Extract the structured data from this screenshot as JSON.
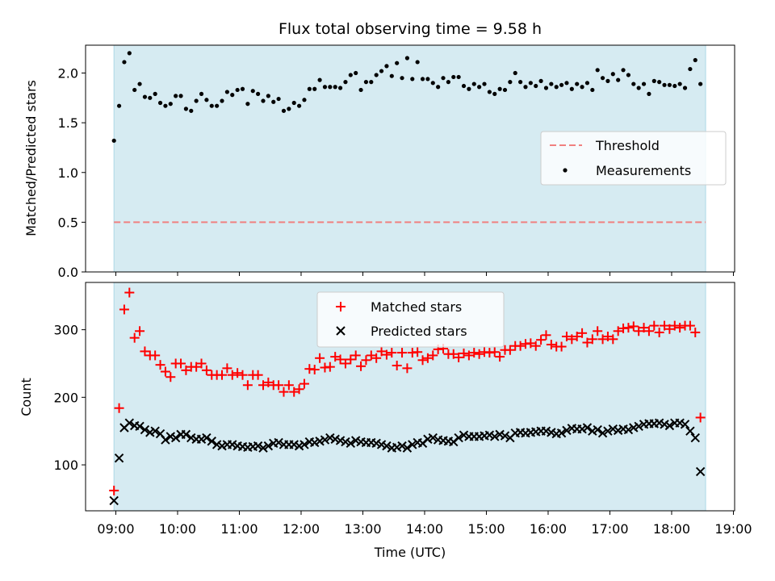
{
  "title": "Flux total observing time = 9.58 h",
  "colors": {
    "band": "#add8e6",
    "threshold": "#f08080",
    "matched": "#ff0000",
    "predicted": "#000000",
    "measurements": "#000000"
  },
  "chart_data": [
    {
      "type": "scatter",
      "panel": "top",
      "ylabel": "Matched/Predicted stars",
      "xlabel": "",
      "ylim": [
        0,
        2.28
      ],
      "yticks": [
        0.0,
        0.5,
        1.0,
        1.5,
        2.0
      ],
      "ytick_labels": [
        "0.0",
        "0.5",
        "1.0",
        "1.5",
        "2.0"
      ],
      "xlim_hours": [
        8.51,
        19.02
      ],
      "observing_span_hours": [
        8.97,
        18.55
      ],
      "threshold": 0.5,
      "legend": {
        "position": "center-right",
        "entries": [
          "Threshold",
          "Measurements"
        ]
      },
      "series": [
        {
          "name": "Measurements",
          "marker": "dot",
          "x_start": 8.97,
          "x_step": 0.0833,
          "values": [
            1.32,
            1.67,
            2.11,
            2.2,
            1.83,
            1.89,
            1.76,
            1.75,
            1.79,
            1.7,
            1.67,
            1.69,
            1.77,
            1.77,
            1.64,
            1.62,
            1.72,
            1.79,
            1.73,
            1.67,
            1.67,
            1.72,
            1.81,
            1.78,
            1.83,
            1.84,
            1.69,
            1.82,
            1.79,
            1.72,
            1.77,
            1.71,
            1.74,
            1.62,
            1.64,
            1.7,
            1.67,
            1.73,
            1.84,
            1.84,
            1.93,
            1.86,
            1.86,
            1.86,
            1.85,
            1.91,
            1.98,
            2.0,
            1.83,
            1.91,
            1.91,
            1.98,
            2.02,
            2.07,
            1.97,
            2.1,
            1.95,
            2.15,
            1.94,
            2.11,
            1.94,
            1.94,
            1.9,
            1.86,
            1.95,
            1.91,
            1.96,
            1.96,
            1.87,
            1.84,
            1.89,
            1.86,
            1.89,
            1.81,
            1.79,
            1.84,
            1.83,
            1.91,
            2.0,
            1.91,
            1.86,
            1.9,
            1.87,
            1.92,
            1.85,
            1.89,
            1.86,
            1.88,
            1.9,
            1.84,
            1.89,
            1.86,
            1.9,
            1.83,
            2.03,
            1.95,
            1.92,
            1.99,
            1.93,
            2.03,
            1.98,
            1.89,
            1.85,
            1.89,
            1.79,
            1.92,
            1.91,
            1.88,
            1.88,
            1.87,
            1.89,
            1.85,
            2.04,
            2.13,
            1.89
          ]
        }
      ]
    },
    {
      "type": "scatter",
      "panel": "bottom",
      "ylabel": "Count",
      "xlabel": "Time (UTC)",
      "ylim": [
        32,
        370
      ],
      "yticks": [
        100,
        200,
        300
      ],
      "ytick_labels": [
        "100",
        "200",
        "300"
      ],
      "xlim_hours": [
        8.51,
        19.02
      ],
      "xticks_hours": [
        9,
        10,
        11,
        12,
        13,
        14,
        15,
        16,
        17,
        18,
        19
      ],
      "xtick_labels": [
        "09:00",
        "10:00",
        "11:00",
        "12:00",
        "13:00",
        "14:00",
        "15:00",
        "16:00",
        "17:00",
        "18:00",
        "19:00"
      ],
      "observing_span_hours": [
        8.97,
        18.55
      ],
      "legend": {
        "position": "top-center",
        "entries": [
          "Matched stars",
          "Predicted stars"
        ]
      },
      "series": [
        {
          "name": "Matched stars",
          "marker": "plus",
          "x_start": 8.97,
          "x_step": 0.0833,
          "values": [
            62,
            184,
            330,
            355,
            288,
            298,
            268,
            262,
            262,
            248,
            238,
            230,
            250,
            250,
            240,
            245,
            245,
            250,
            240,
            233,
            233,
            233,
            243,
            233,
            236,
            233,
            218,
            233,
            233,
            218,
            222,
            218,
            218,
            208,
            218,
            208,
            212,
            220,
            242,
            241,
            258,
            244,
            245,
            260,
            256,
            250,
            256,
            262,
            246,
            255,
            262,
            258,
            268,
            263,
            266,
            247,
            266,
            243,
            266,
            267,
            255,
            258,
            262,
            271,
            272,
            264,
            264,
            259,
            265,
            262,
            266,
            264,
            267,
            266,
            267,
            260,
            270,
            270,
            276,
            276,
            279,
            280,
            276,
            285,
            292,
            278,
            275,
            275,
            290,
            286,
            290,
            295,
            281,
            286,
            298,
            286,
            290,
            286,
            298,
            302,
            303,
            305,
            298,
            303,
            298,
            306,
            296,
            306,
            301,
            306,
            303,
            306,
            306,
            296,
            170
          ]
        },
        {
          "name": "Predicted stars",
          "marker": "x",
          "x_start": 8.97,
          "x_step": 0.0833,
          "values": [
            47,
            110,
            155,
            162,
            158,
            157,
            152,
            148,
            150,
            146,
            137,
            142,
            140,
            145,
            145,
            140,
            138,
            138,
            140,
            135,
            130,
            128,
            130,
            130,
            128,
            127,
            126,
            127,
            128,
            125,
            128,
            132,
            133,
            130,
            130,
            130,
            128,
            130,
            134,
            133,
            135,
            137,
            140,
            138,
            136,
            134,
            132,
            136,
            134,
            133,
            133,
            132,
            130,
            128,
            125,
            126,
            128,
            125,
            130,
            133,
            132,
            138,
            140,
            137,
            136,
            135,
            134,
            140,
            144,
            142,
            142,
            142,
            143,
            144,
            142,
            145,
            143,
            140,
            147,
            148,
            147,
            148,
            149,
            150,
            150,
            148,
            146,
            147,
            151,
            154,
            153,
            153,
            155,
            150,
            152,
            147,
            150,
            153,
            151,
            153,
            152,
            155,
            157,
            160,
            161,
            161,
            162,
            160,
            158,
            162,
            162,
            160,
            150,
            140,
            90
          ]
        }
      ]
    }
  ]
}
